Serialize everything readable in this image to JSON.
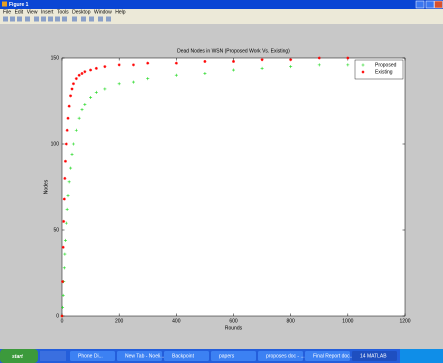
{
  "window": {
    "title": "Figure 1",
    "menu": [
      "File",
      "Edit",
      "View",
      "Insert",
      "Tools",
      "Desktop",
      "Window",
      "Help"
    ]
  },
  "chart_data": {
    "type": "scatter",
    "title": "Dead Nodes in  WSN (Proposed Work Vs. Existing)",
    "x_label": "Rounds",
    "y_label": "Nodes",
    "xlim": [
      0,
      1200
    ],
    "xticks": [
      0,
      200,
      400,
      600,
      800,
      1000,
      1200
    ],
    "ylim": [
      0,
      150
    ],
    "yticks": [
      0,
      50,
      100,
      150
    ],
    "legend": "upper right",
    "series": [
      {
        "name": "Proposed",
        "color": "#1fd81f",
        "marker": "+",
        "x": [
          0,
          2,
          4,
          6,
          8,
          10,
          12,
          15,
          18,
          21,
          25,
          30,
          35,
          40,
          50,
          60,
          70,
          80,
          100,
          120,
          150,
          200,
          250,
          300,
          400,
          500,
          600,
          700,
          800,
          900,
          1000
        ],
        "values": [
          0,
          5,
          12,
          20,
          28,
          36,
          44,
          54,
          62,
          70,
          78,
          86,
          94,
          100,
          108,
          115,
          120,
          123,
          127,
          130,
          132,
          135,
          136,
          138,
          140,
          141,
          143,
          144,
          145,
          146,
          146
        ]
      },
      {
        "name": "Existing",
        "color": "#ff0000",
        "marker": "*",
        "x": [
          0,
          2,
          4,
          6,
          8,
          10,
          12,
          15,
          18,
          21,
          25,
          30,
          35,
          40,
          50,
          60,
          70,
          80,
          100,
          120,
          150,
          200,
          250,
          300,
          400,
          500,
          600,
          700,
          800,
          900,
          1000
        ],
        "values": [
          0,
          20,
          40,
          55,
          68,
          80,
          90,
          100,
          108,
          115,
          122,
          128,
          132,
          135,
          138,
          140,
          141,
          142,
          143,
          144,
          145,
          146,
          146,
          147,
          147,
          148,
          148,
          149,
          149,
          150,
          150
        ]
      }
    ]
  },
  "taskbar": {
    "start": "start",
    "tasks": [
      "Phone Di...",
      "New Tab - Noeli...",
      "Backpoint",
      "papers",
      "proposes doc - ...",
      "Final Report doc...",
      "14 MATLAB"
    ]
  }
}
